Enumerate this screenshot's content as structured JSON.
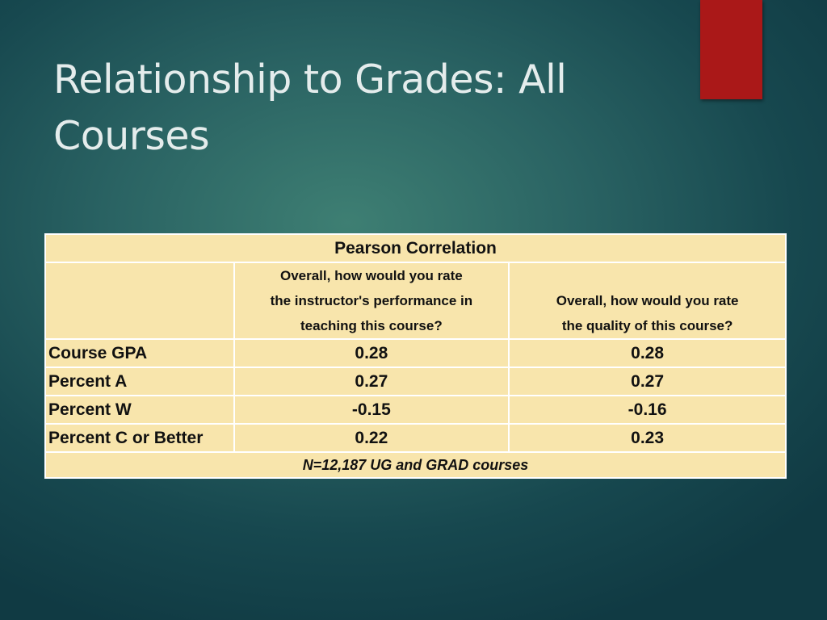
{
  "slide": {
    "title": "Relationship to Grades: All Courses",
    "accent_color": "#aa1818",
    "background_color": "#2a6363"
  },
  "table": {
    "header": "Pearson Correlation",
    "question_columns": [
      "Overall, how would you rate\nthe instructor's performance in\nteaching this course?",
      "Overall, how would you rate\nthe quality of this course?"
    ],
    "rows": [
      {
        "label": "Course GPA",
        "values": [
          "0.28",
          "0.28"
        ]
      },
      {
        "label": "Percent A",
        "values": [
          "0.27",
          "0.27"
        ]
      },
      {
        "label": "Percent W",
        "values": [
          "-0.15",
          "-0.16"
        ]
      },
      {
        "label": "Percent C or Better",
        "values": [
          "0.22",
          "0.23"
        ]
      }
    ],
    "footnote": "N=12,187 UG and GRAD courses",
    "cell_color": "#f8e5ac"
  }
}
